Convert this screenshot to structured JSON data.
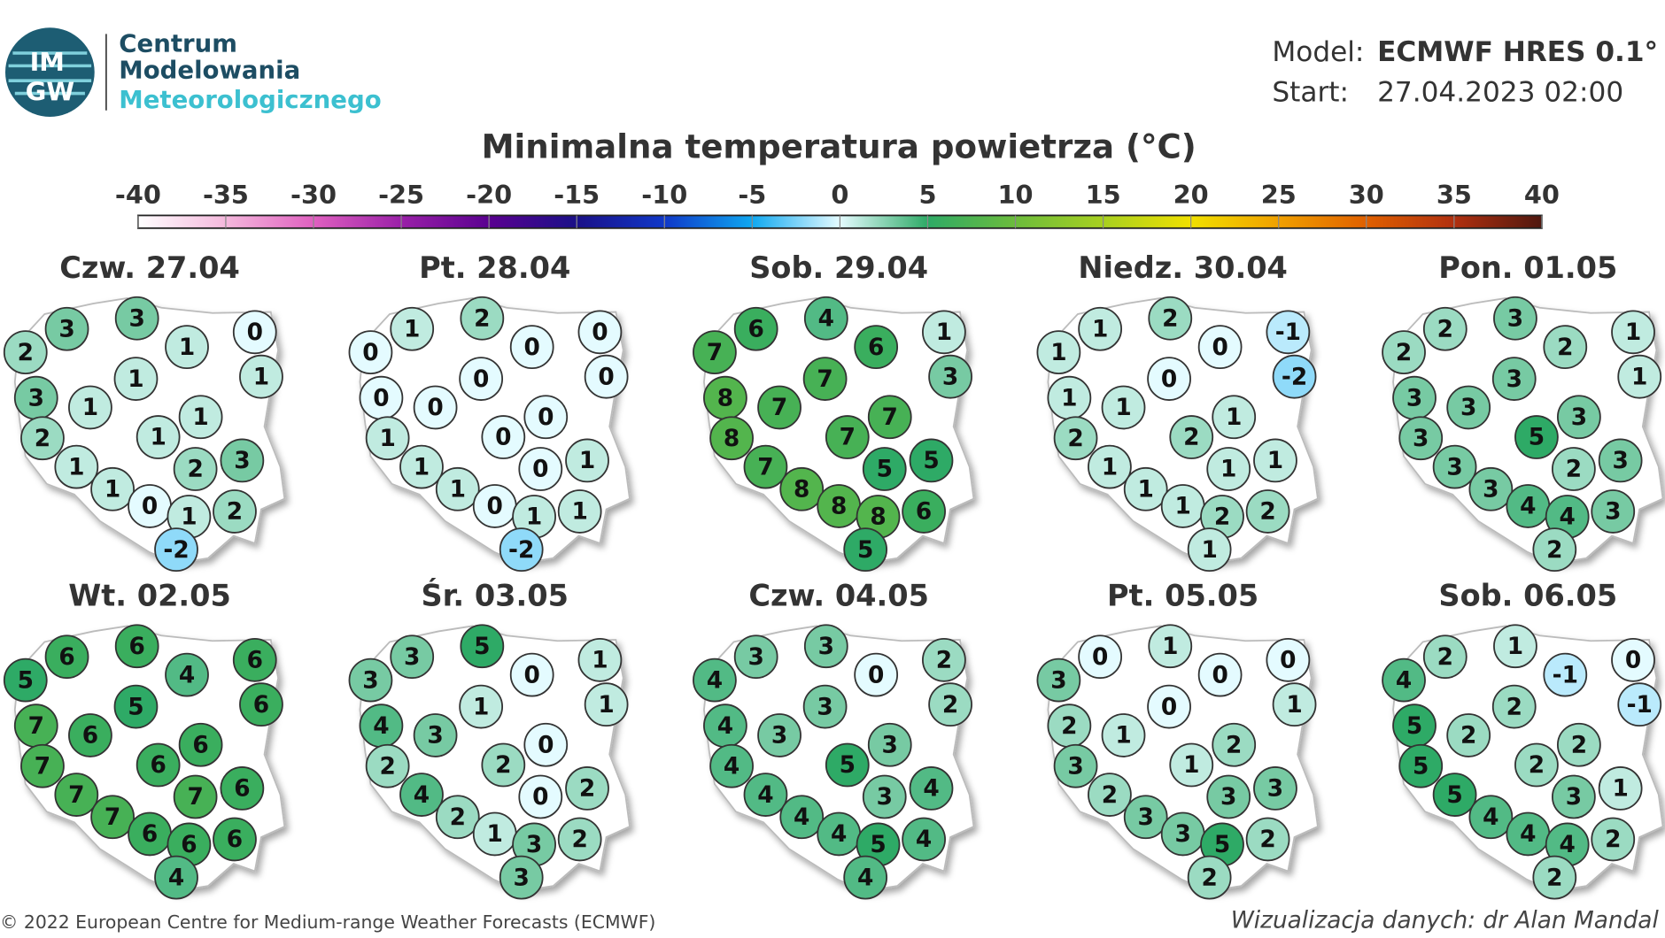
{
  "header": {
    "logo": {
      "top": "IM",
      "bottom": "GW"
    },
    "org": [
      "Centrum",
      "Modelowania",
      "Meteorologicznego"
    ],
    "model_label": "Model:",
    "model": "ECMWF HRES 0.1°",
    "start_label": "Start:",
    "start": "27.04.2023 02:00"
  },
  "title": "Minimalna temperatura powietrza (°C)",
  "colorbar": {
    "lim": [
      -40,
      40
    ],
    "ticks": [
      -40,
      -35,
      -30,
      -25,
      -20,
      -15,
      -10,
      -5,
      0,
      5,
      10,
      15,
      20,
      25,
      30,
      35,
      40
    ],
    "colors": [
      "#ffffff",
      "#f4b8dc",
      "#e060c0",
      "#9a20a8",
      "#5a0090",
      "#1a1088",
      "#1038c8",
      "#10a8f0",
      "#e4fbff",
      "#2eaa66",
      "#6cbc3c",
      "#a8d020",
      "#f0e000",
      "#f0a000",
      "#e06000",
      "#b03010",
      "#501810"
    ]
  },
  "maps": [
    {
      "label": "Czw. 27.04",
      "values": [
        3,
        3,
        2,
        1,
        0,
        1,
        1,
        3,
        1,
        1,
        2,
        1,
        1,
        2,
        3,
        1,
        0,
        1,
        2,
        -2
      ]
    },
    {
      "label": "Pt. 28.04",
      "values": [
        1,
        2,
        0,
        0,
        0,
        0,
        0,
        0,
        0,
        0,
        1,
        0,
        1,
        0,
        1,
        1,
        0,
        1,
        1,
        -2
      ]
    },
    {
      "label": "Sob. 29.04",
      "values": [
        6,
        4,
        7,
        6,
        1,
        3,
        7,
        8,
        7,
        7,
        8,
        7,
        7,
        5,
        5,
        8,
        8,
        8,
        6,
        5
      ]
    },
    {
      "label": "Niedz. 30.04",
      "values": [
        1,
        2,
        1,
        0,
        -1,
        -2,
        0,
        1,
        1,
        1,
        2,
        2,
        1,
        1,
        1,
        1,
        1,
        2,
        2,
        1
      ]
    },
    {
      "label": "Pon. 01.05",
      "values": [
        2,
        3,
        2,
        2,
        1,
        1,
        3,
        3,
        3,
        3,
        3,
        5,
        3,
        2,
        3,
        3,
        4,
        4,
        3,
        2
      ]
    },
    {
      "label": "Wt. 02.05",
      "values": [
        6,
        6,
        5,
        4,
        6,
        6,
        5,
        7,
        6,
        6,
        7,
        6,
        7,
        7,
        6,
        7,
        6,
        6,
        6,
        4
      ]
    },
    {
      "label": "Śr. 03.05",
      "values": [
        3,
        5,
        3,
        0,
        1,
        1,
        1,
        4,
        3,
        0,
        2,
        2,
        4,
        0,
        2,
        2,
        1,
        3,
        2,
        3
      ]
    },
    {
      "label": "Czw. 04.05",
      "values": [
        3,
        3,
        4,
        0,
        2,
        2,
        3,
        4,
        3,
        3,
        4,
        5,
        4,
        3,
        4,
        4,
        4,
        5,
        4,
        4
      ]
    },
    {
      "label": "Pt. 05.05",
      "values": [
        0,
        1,
        3,
        0,
        0,
        1,
        0,
        2,
        1,
        2,
        3,
        1,
        2,
        3,
        3,
        3,
        3,
        5,
        2,
        2
      ]
    },
    {
      "label": "Sob. 06.05",
      "values": [
        2,
        1,
        4,
        -1,
        0,
        -1,
        2,
        5,
        2,
        2,
        5,
        2,
        5,
        3,
        1,
        4,
        4,
        4,
        2,
        2
      ]
    }
  ],
  "footer": {
    "left": "© 2022 European Centre for Medium-range Weather Forecasts (ECMWF)",
    "right": "Wizualizacja danych: dr Alan Mandal"
  }
}
